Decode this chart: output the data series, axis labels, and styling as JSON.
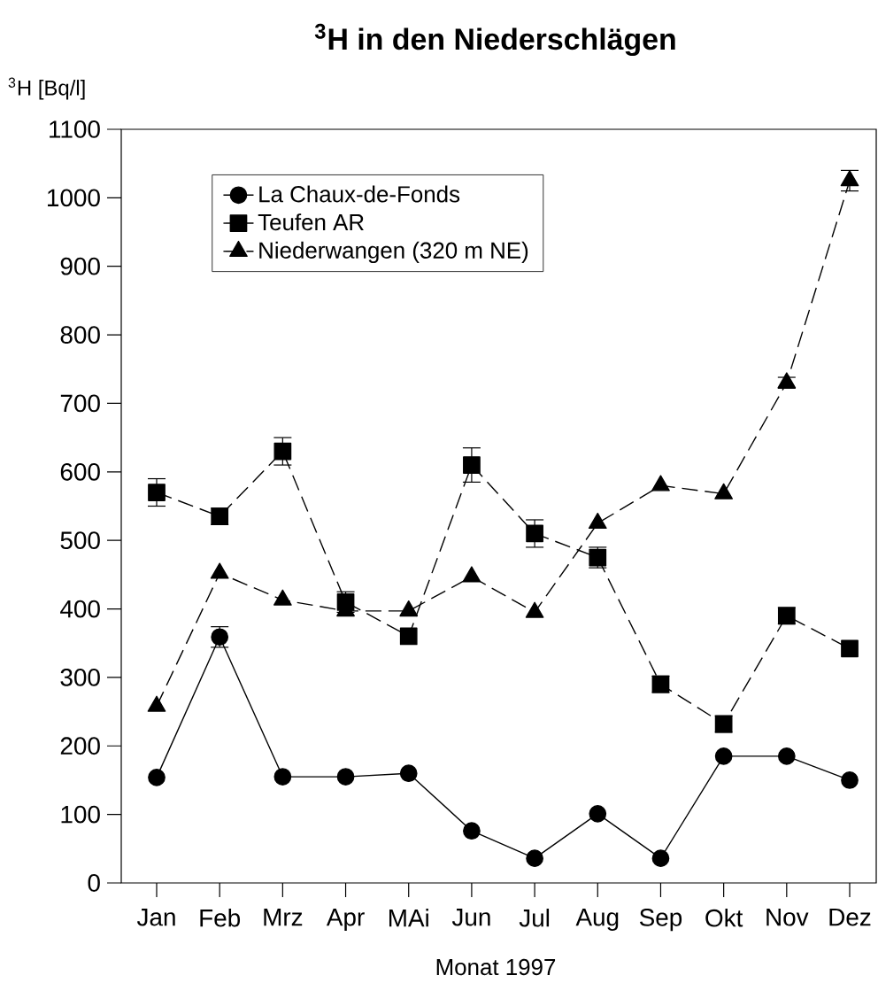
{
  "chart_data": {
    "type": "line",
    "title": "$^{3}$H in den Niederschlägen",
    "ylabel": "$^{3}$H [Bq/l]",
    "xlabel": "Monat 1997",
    "categories": [
      "Jan",
      "Feb",
      "Mrz",
      "Apr",
      "MAi",
      "Jun",
      "Jul",
      "Aug",
      "Sep",
      "Okt",
      "Nov",
      "Dez"
    ],
    "ylim": [
      0,
      1100
    ],
    "yticks": [
      0,
      100,
      200,
      300,
      400,
      500,
      600,
      700,
      800,
      900,
      1000,
      1100
    ],
    "legend": "top left",
    "series": [
      {
        "name": "La Chaux-de-Fonds",
        "color": "#000000",
        "marker": "circle",
        "line_style": "solid",
        "values": [
          154,
          359,
          155,
          155,
          160,
          76,
          36,
          101,
          36,
          185,
          185,
          150
        ],
        "errors": [
          null,
          15,
          null,
          null,
          null,
          null,
          null,
          null,
          null,
          null,
          null,
          null
        ]
      },
      {
        "name": "Teufen AR",
        "color": "#000000",
        "marker": "square",
        "line_style": "dashed",
        "values": [
          570,
          535,
          630,
          410,
          360,
          610,
          510,
          475,
          290,
          232,
          390,
          342
        ],
        "errors": [
          20,
          12,
          20,
          15,
          null,
          25,
          20,
          15,
          12,
          12,
          12,
          null
        ]
      },
      {
        "name": "Niederwangen (320 m NE)",
        "color": "#000000",
        "marker": "triangle",
        "line_style": "dashed",
        "values": [
          258,
          452,
          413,
          397,
          397,
          447,
          395,
          525,
          580,
          568,
          730,
          1025
        ],
        "errors": [
          null,
          null,
          null,
          null,
          null,
          null,
          null,
          null,
          null,
          null,
          8,
          15
        ]
      }
    ]
  }
}
